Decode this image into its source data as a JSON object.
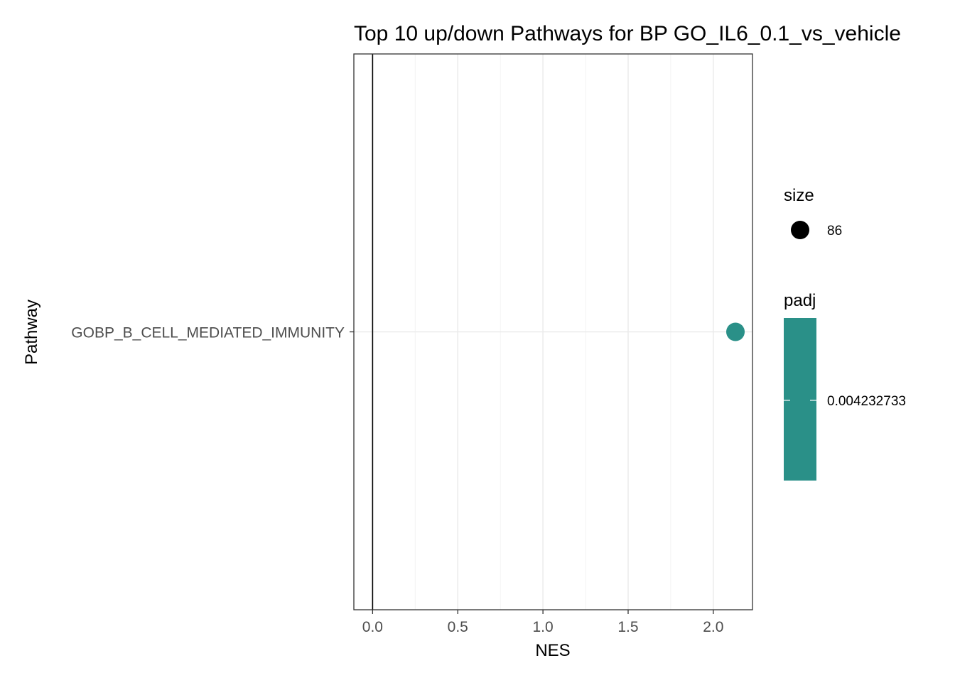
{
  "chart_data": {
    "type": "scatter",
    "title": "Top 10 up/down Pathways for BP GO_IL6_0.1_vs_vehicle",
    "xlabel": "NES",
    "ylabel": "Pathway",
    "xlim": [
      -0.11,
      2.23
    ],
    "x_ticks": [
      "0.0",
      "0.5",
      "1.0",
      "1.5",
      "2.0"
    ],
    "x_tick_values": [
      0,
      0.5,
      1,
      1.5,
      2
    ],
    "categories": [
      "GOBP_B_CELL_MEDIATED_IMMUNITY"
    ],
    "points": [
      {
        "pathway": "GOBP_B_CELL_MEDIATED_IMMUNITY",
        "NES": 2.13,
        "size": 86,
        "padj": 0.004232733
      }
    ],
    "reference_line_x": 0,
    "grid": true,
    "point_color": "#2a9088",
    "legend": {
      "placement": "right",
      "size": {
        "title": "size",
        "label": "86"
      },
      "padj": {
        "title": "padj",
        "label": "0.004232733"
      }
    }
  }
}
